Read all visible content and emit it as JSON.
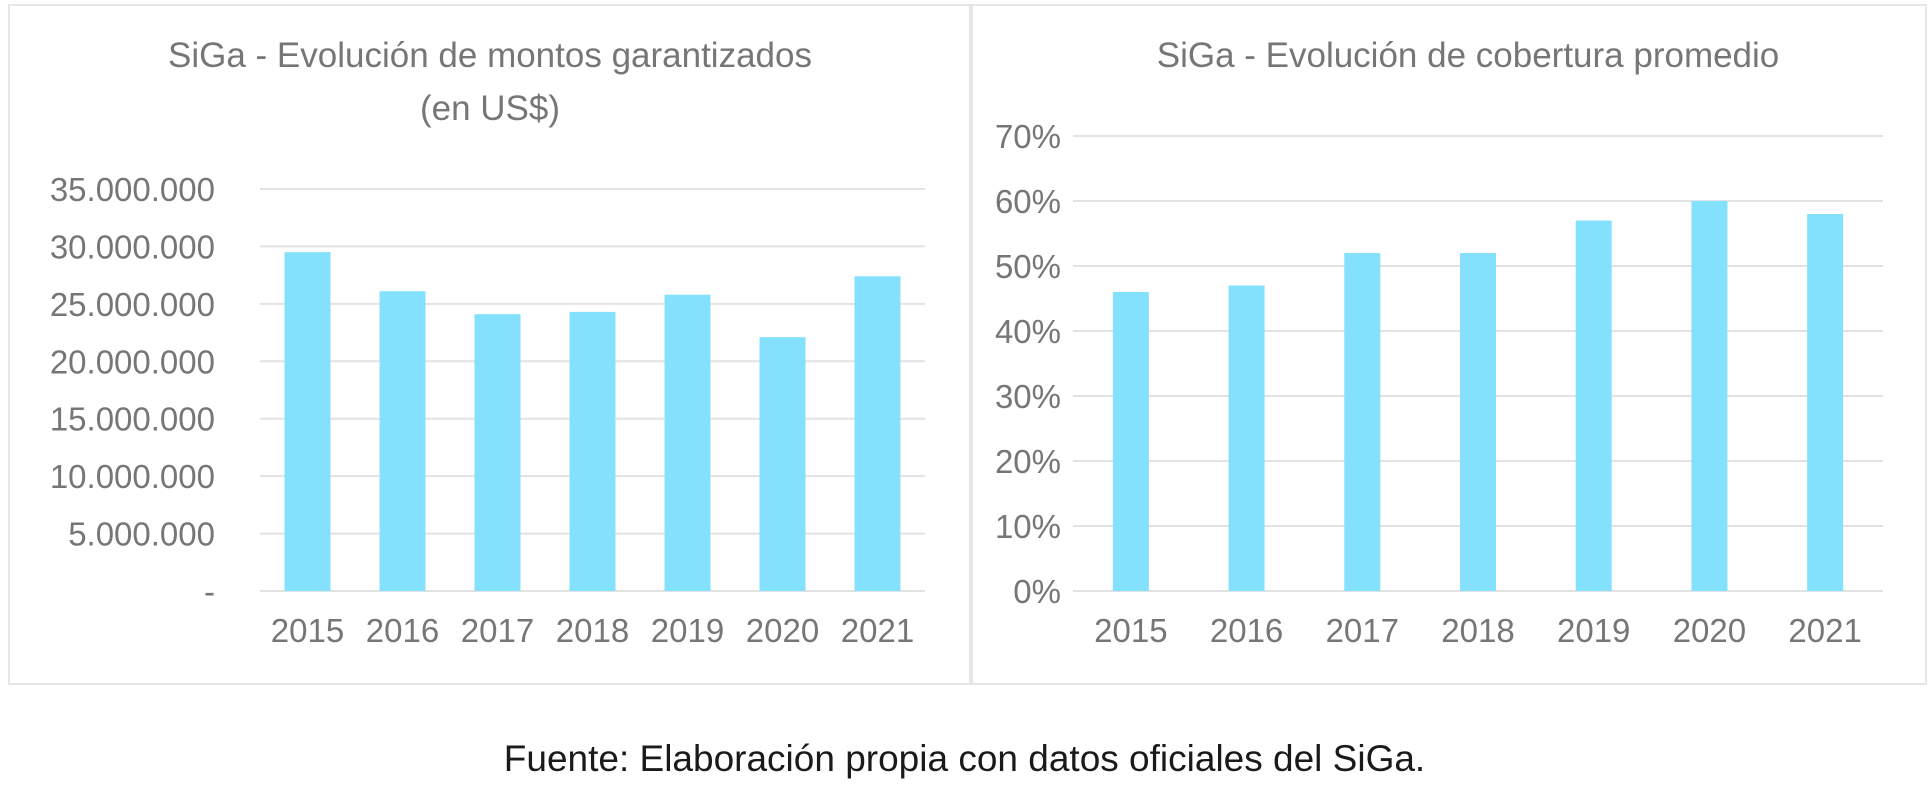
{
  "colors": {
    "bar": "#83e1fd",
    "grid": "#e2e2e2",
    "text": "#767676"
  },
  "chart_data": [
    {
      "type": "bar",
      "title": [
        "SiGa - Evolución de montos garantizados",
        "(en US$)"
      ],
      "categories": [
        "2015",
        "2016",
        "2017",
        "2018",
        "2019",
        "2020",
        "2021"
      ],
      "values": [
        29500000,
        26100000,
        24100000,
        24300000,
        25800000,
        22100000,
        27400000
      ],
      "ylim": [
        0,
        35000000
      ],
      "yticks": [
        0,
        5000000,
        10000000,
        15000000,
        20000000,
        25000000,
        30000000,
        35000000
      ],
      "ytick_labels": [
        "-",
        "5.000.000",
        "10.000.000",
        "15.000.000",
        "20.000.000",
        "25.000.000",
        "30.000.000",
        "35.000.000"
      ],
      "grid": true,
      "xlabel": "",
      "ylabel": ""
    },
    {
      "type": "bar",
      "title": [
        "SiGa - Evolución de cobertura promedio"
      ],
      "categories": [
        "2015",
        "2016",
        "2017",
        "2018",
        "2019",
        "2020",
        "2021"
      ],
      "values": [
        46,
        47,
        52,
        52,
        57,
        60,
        58
      ],
      "ylim": [
        0,
        70
      ],
      "yticks": [
        0,
        10,
        20,
        30,
        40,
        50,
        60,
        70
      ],
      "ytick_labels": [
        "0%",
        "10%",
        "20%",
        "30%",
        "40%",
        "50%",
        "60%",
        "70%"
      ],
      "grid": true,
      "xlabel": "",
      "ylabel": ""
    }
  ],
  "footer": {
    "text": "Fuente: Elaboración propia con datos oficiales del SiGa."
  }
}
